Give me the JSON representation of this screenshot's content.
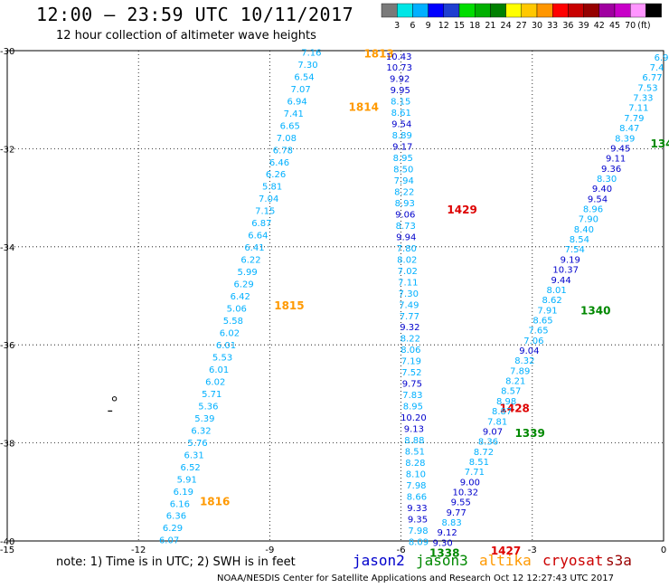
{
  "header": {
    "title": "12:00 – 23:59 UTC 10/11/2017",
    "subtitle": "12 hour collection of altimeter wave heights"
  },
  "footer": {
    "text": "NOAA/NESDIS Center for Satellite Applications and Research    Oct 12 12:27:43 UTC 2017"
  },
  "legend": {
    "colors": [
      "#7a7a7a",
      "#00e6e6",
      "#00b0ff",
      "#0000ff",
      "#1f3fd0",
      "#00dd00",
      "#00b000",
      "#008000",
      "#ffff00",
      "#ffc800",
      "#ff9600",
      "#ff0000",
      "#c80000",
      "#960000",
      "#a000a0",
      "#c800c8",
      "#ff96ff",
      "#000000"
    ],
    "labels": [
      "3",
      "6",
      "9",
      "12",
      "15",
      "18",
      "21",
      "24",
      "27",
      "30",
      "33",
      "36",
      "39",
      "42",
      "45",
      "70",
      "(ft)"
    ]
  },
  "note": {
    "text": "note: 1) Time is in UTC; 2) SWH is in feet",
    "satellites": [
      {
        "name": "jason2",
        "color": "#0000cc"
      },
      {
        "name": "jason3",
        "color": "#008800"
      },
      {
        "name": "altika",
        "color": "#ff9900"
      },
      {
        "name": "cryosat",
        "color": "#cc0000"
      },
      {
        "name": "s3a",
        "color": "#990000"
      }
    ]
  },
  "chart_data": {
    "type": "scatter",
    "xlabel": "",
    "ylabel": "",
    "xlim": [
      -15,
      0
    ],
    "ylim": [
      -40,
      -30
    ],
    "xticks": [
      -15,
      -12,
      -9,
      -6,
      -3,
      0
    ],
    "yticks": [
      -30,
      -32,
      -34,
      -36,
      -38,
      -40
    ],
    "grid": true,
    "tracks": [
      {
        "satellite": "altika",
        "start": [
          -8.05,
          -30.1
        ],
        "end": [
          -11.3,
          -40.05
        ],
        "values": [
          "7.16",
          "7.30",
          "6.54",
          "7.07",
          "6.94",
          "7.41",
          "6.65",
          "7.08",
          "6.78",
          "6.46",
          "6.26",
          "5.81",
          "7.04",
          "7.15",
          "6.87",
          "6.64",
          "6.41",
          "6.22",
          "5.99",
          "6.29",
          "6.42",
          "5.06",
          "5.58",
          "6.02",
          "6.01",
          "5.53",
          "6.01",
          "6.02",
          "5.71",
          "5.36",
          "5.39",
          "6.32",
          "5.76",
          "6.31",
          "6.52",
          "5.91",
          "6.19",
          "6.16",
          "6.36",
          "6.29",
          "6.07"
        ],
        "time_labels": [
          {
            "text": "1813",
            "at": [
              -6.85,
              -30.06
            ]
          },
          {
            "text": "1814",
            "at": [
              -7.2,
              -31.15
            ]
          },
          {
            "text": "1815",
            "at": [
              -8.9,
              -35.2
            ]
          },
          {
            "text": "1816",
            "at": [
              -10.6,
              -39.2
            ]
          }
        ]
      },
      {
        "satellite": "jason2",
        "start": [
          -6.05,
          -30.18
        ],
        "end": [
          -5.6,
          -40.08
        ],
        "values": [
          "10.43",
          "10.73",
          "9.92",
          "9.95",
          "8.15",
          "8.61",
          "9.54",
          "8.89",
          "9.17",
          "8.95",
          "8.50",
          "7.94",
          "8.22",
          "8.93",
          "9.06",
          "8.73",
          "9.94",
          "7.80",
          "8.02",
          "7.02",
          "7.11",
          "7.30",
          "7.49",
          "7.77",
          "9.32",
          "8.22",
          "8.06",
          "7.19",
          "7.52",
          "9.75",
          "7.83",
          "8.95",
          "10.20",
          "9.13",
          "8.88",
          "8.51",
          "8.28",
          "8.10",
          "7.98",
          "8.66",
          "9.33",
          "9.35",
          "7.98",
          "8.09"
        ],
        "time_labels": [
          {
            "text": "1429",
            "at": [
              -4.95,
              -33.25
            ]
          },
          {
            "text": "1428",
            "at": [
              -3.75,
              -37.3
            ]
          },
          {
            "text": "1427",
            "at": [
              -3.95,
              -40.2
            ]
          }
        ]
      },
      {
        "satellite": "jason3",
        "start": [
          -0.05,
          -30.2
        ],
        "end": [
          -5.05,
          -40.1
        ],
        "values": [
          "6.9",
          "7.4",
          "6.77",
          "7.53",
          "7.33",
          "7.11",
          "7.79",
          "8.47",
          "8.39",
          "9.45",
          "9.11",
          "9.36",
          "8.30",
          "9.40",
          "9.54",
          "8.96",
          "7.90",
          "8.40",
          "8.54",
          "7.54",
          "9.19",
          "10.37",
          "9.44",
          "8.01",
          "8.62",
          "7.91",
          "8.65",
          "7.65",
          "7.06",
          "9.04",
          "8.32",
          "7.89",
          "8.21",
          "8.57",
          "8.98",
          "8.87",
          "7.81",
          "9.07",
          "8.36",
          "8.72",
          "8.51",
          "7.71",
          "9.00",
          "10.32",
          "9.55",
          "9.77",
          "8.83",
          "9.12",
          "9.30"
        ],
        "time_labels": [
          {
            "text": "134",
            "at": [
              -0.3,
              -31.9
            ]
          },
          {
            "text": "1340",
            "at": [
              -1.9,
              -35.3
            ]
          },
          {
            "text": "1339",
            "at": [
              -3.4,
              -37.8
            ]
          },
          {
            "text": "1338",
            "at": [
              -5.35,
              -40.25
            ]
          }
        ]
      }
    ]
  }
}
